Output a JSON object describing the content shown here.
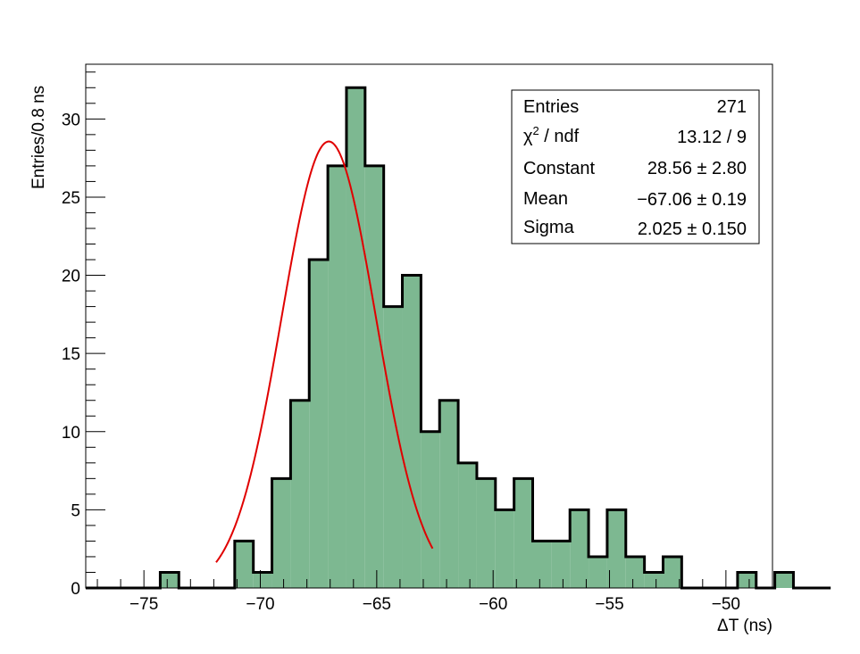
{
  "colors": {
    "fill": "#7db891",
    "outline": "#000000",
    "fit": "#e00000"
  },
  "chart_data": {
    "type": "bar",
    "title": "",
    "xlabel": "ΔT (ns)",
    "ylabel": "Entries/0.8 ns",
    "xlim": [
      -77.5,
      -48.0
    ],
    "ylim": [
      0,
      33.5
    ],
    "x_ticks": [
      -75,
      -70,
      -65,
      -60,
      -55,
      -50
    ],
    "x_tick_labels": [
      "−75",
      "−70",
      "−65",
      "−60",
      "−55",
      "−50"
    ],
    "y_ticks": [
      0,
      5,
      10,
      15,
      20,
      25,
      30
    ],
    "y_tick_labels": [
      "0",
      "5",
      "10",
      "15",
      "20",
      "25",
      "30"
    ],
    "bin_width": 0.8,
    "bin_edges_start": -77.5,
    "counts": [
      0,
      0,
      0,
      0,
      1,
      0,
      0,
      0,
      3,
      1,
      7,
      12,
      21,
      27,
      32,
      27,
      18,
      20,
      10,
      12,
      8,
      7,
      5,
      7,
      3,
      3,
      5,
      2,
      5,
      2,
      1,
      2,
      0,
      0,
      0,
      1,
      0,
      1,
      0,
      0
    ],
    "fit": {
      "function": "gaus",
      "constant": 28.56,
      "mean": -67.06,
      "sigma": 2.025,
      "range": [
        -71.9,
        -62.6
      ]
    },
    "stats_box": {
      "rows": [
        {
          "label": "Entries",
          "value": "271"
        },
        {
          "label": "χ",
          "sup": "2",
          "label_rest": " / ndf",
          "value": "13.12 / 9"
        },
        {
          "label": "Constant",
          "value": "28.56 ± 2.80"
        },
        {
          "label": "Mean",
          "value": "−67.06 ± 0.19"
        },
        {
          "label": "Sigma",
          "value": "2.025 ± 0.150"
        }
      ]
    }
  }
}
